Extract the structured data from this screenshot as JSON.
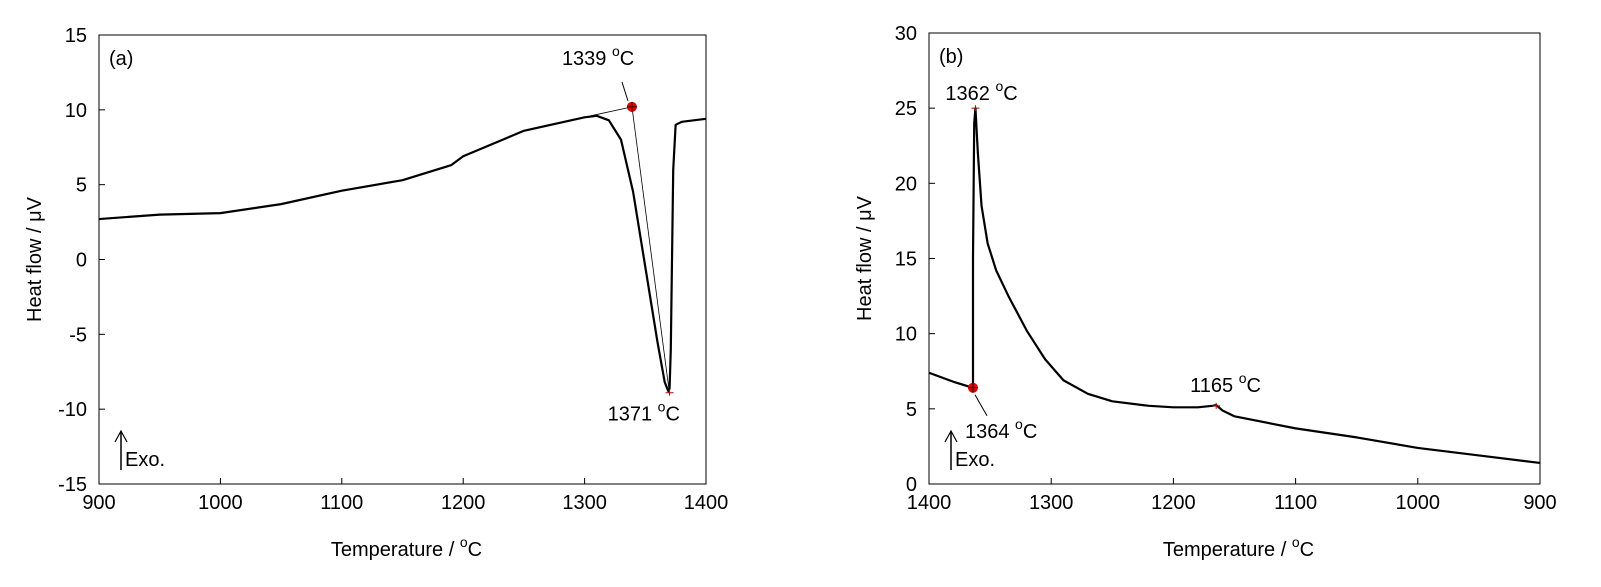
{
  "chart_data": [
    {
      "type": "line",
      "panel": "(a)",
      "xlabel": "Temperature / ",
      "xunit": "oC",
      "ylabel": "Heat flow / μV",
      "xlim": [
        900,
        1400
      ],
      "ylim": [
        -15,
        15
      ],
      "xticks": [
        900,
        1000,
        1100,
        1200,
        1300,
        1400
      ],
      "yticks": [
        -15,
        -10,
        -5,
        0,
        5,
        10,
        15
      ],
      "exo_label": "Exo.",
      "series": [
        {
          "name": "heat flow",
          "x": [
            900,
            950,
            1000,
            1050,
            1100,
            1150,
            1190,
            1200,
            1250,
            1300,
            1310,
            1320,
            1330,
            1340,
            1350,
            1360,
            1366,
            1369,
            1370,
            1371,
            1372,
            1373,
            1375,
            1380,
            1400
          ],
          "y": [
            2.7,
            3.0,
            3.1,
            3.7,
            4.6,
            5.3,
            6.3,
            6.9,
            8.6,
            9.5,
            9.6,
            9.3,
            8.0,
            4.5,
            -0.5,
            -5.5,
            -8.2,
            -8.8,
            -8.6,
            -6,
            0,
            6,
            9,
            9.2,
            9.4
          ]
        }
      ],
      "annotations": [
        {
          "text": "1339",
          "x": 1339,
          "y": 10.2,
          "marker": "red-dot"
        },
        {
          "text": "1371",
          "x": 1370,
          "y": -8.9
        }
      ],
      "tangents": [
        [
          [
            1305,
            9.6
          ],
          [
            1339,
            10.2
          ]
        ],
        [
          [
            1339,
            10.2
          ],
          [
            1370,
            -9
          ]
        ]
      ]
    },
    {
      "type": "line",
      "panel": "(b)",
      "xlabel": "Temperature / ",
      "xunit": "oC",
      "ylabel": "Heat flow / μV",
      "xlim": [
        1400,
        900
      ],
      "ylim": [
        0,
        30
      ],
      "xticks": [
        1400,
        1300,
        1200,
        1100,
        1000,
        900
      ],
      "yticks": [
        0,
        5,
        10,
        15,
        20,
        25,
        30
      ],
      "exo_label": "Exo.",
      "series": [
        {
          "name": "heat flow",
          "x": [
            1400,
            1380,
            1364,
            1364,
            1363,
            1362,
            1360,
            1357,
            1352,
            1345,
            1335,
            1320,
            1305,
            1290,
            1270,
            1250,
            1220,
            1200,
            1180,
            1168,
            1165,
            1160,
            1155,
            1150,
            1100,
            1050,
            1000,
            950,
            900
          ],
          "y": [
            7.4,
            6.8,
            6.4,
            15,
            24,
            25,
            22,
            18.5,
            16,
            14.2,
            12.5,
            10.2,
            8.3,
            6.9,
            6.0,
            5.5,
            5.2,
            5.1,
            5.1,
            5.2,
            5.25,
            4.9,
            4.7,
            4.5,
            3.7,
            3.1,
            2.4,
            1.9,
            1.4
          ]
        }
      ],
      "annotations": [
        {
          "text": "1362",
          "x": 1362,
          "y": 25
        },
        {
          "text": "1364",
          "x": 1364,
          "y": 6.4,
          "marker": "red-dot"
        },
        {
          "text": "1165",
          "x": 1165,
          "y": 5.2
        }
      ]
    }
  ],
  "degree_unit": "C"
}
